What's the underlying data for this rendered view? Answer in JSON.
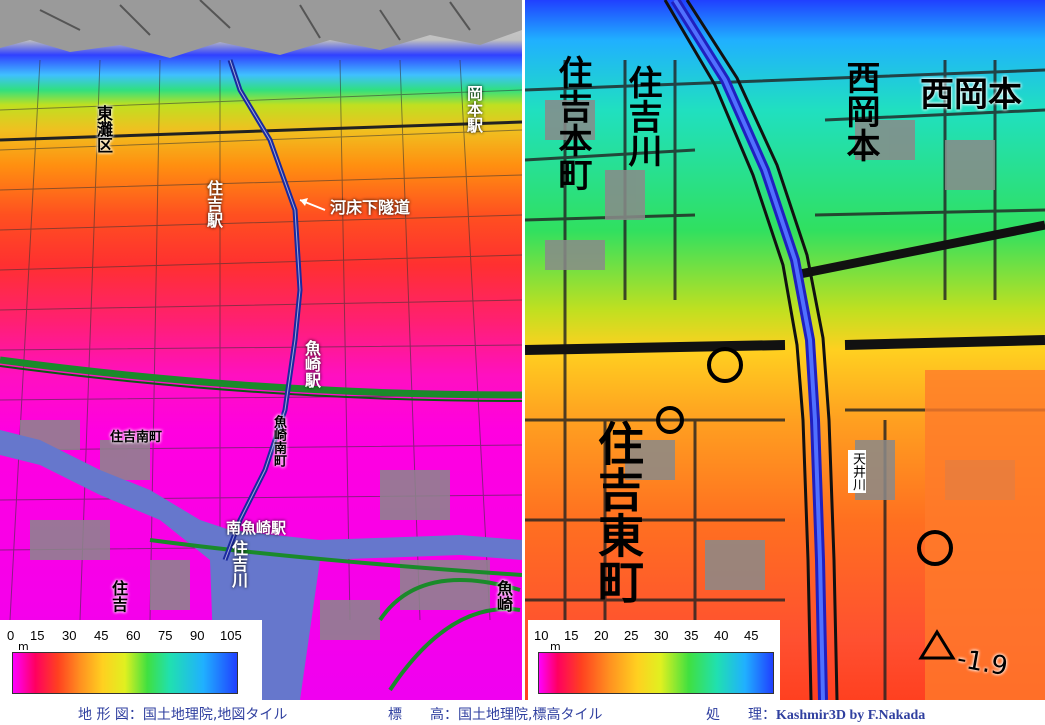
{
  "left_map": {
    "labels": {
      "okamoto_station": "岡本駅",
      "higashinada": "東灘区",
      "sumiyoshi_station": "住吉駅",
      "tunnel": "河床下隧道",
      "uozaki_station": "魚崎駅",
      "minami_uozaki_station": "南魚崎駅",
      "sumiyoshi_river": "住吉川",
      "sumiyoshi_minamimachi": "住吉南町",
      "uozaki_minamimachi": "魚崎南町",
      "sumiyoshi_bottom": "住吉",
      "uozaki_bottom": "魚崎"
    },
    "legend": {
      "unit": "m",
      "ticks": [
        "0",
        "15",
        "30",
        "45",
        "60",
        "75",
        "90",
        "105"
      ]
    }
  },
  "right_map": {
    "labels": {
      "sumiyoshi_honmachi": "住吉本町",
      "sumiyoshi_river": "住吉川",
      "nishiokamoto": "西岡本",
      "nishiokamoto_right": "西岡本",
      "sumiyoshi_higashimachi": "住吉東町",
      "tenjo_river": "天井川",
      "elevation_point": "-1.9"
    },
    "legend": {
      "unit": "m",
      "ticks": [
        "10",
        "15",
        "20",
        "25",
        "30",
        "35",
        "40",
        "45"
      ]
    }
  },
  "captions": {
    "topo_label": "地 形 図：",
    "topo_value": "国土地理院,地図タイル",
    "elev_label": "標　　高：",
    "elev_value": "国土地理院,標高タイル",
    "proc_label": "処　　理：",
    "proc_value": "Kashmir3D by F.Nakada"
  }
}
